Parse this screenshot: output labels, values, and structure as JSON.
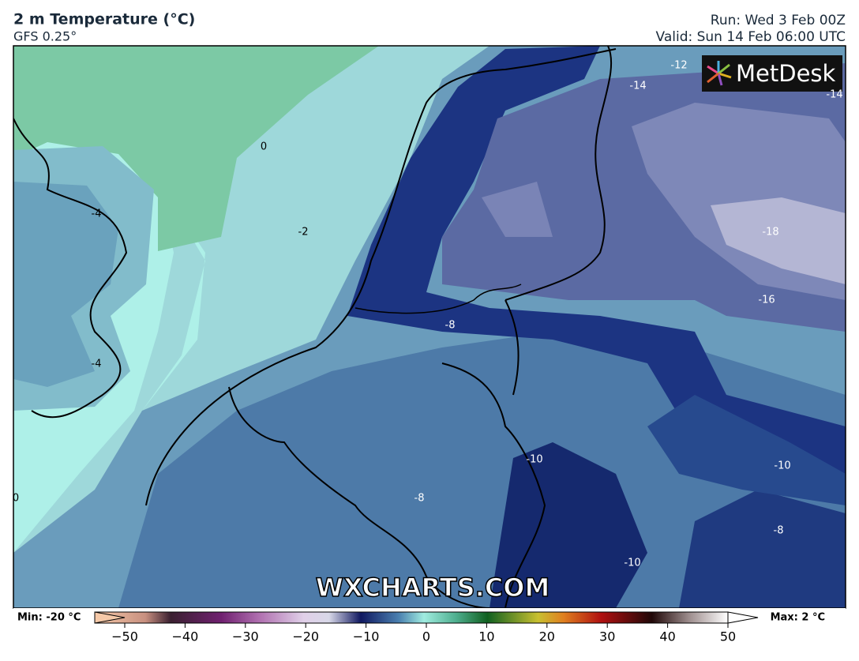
{
  "header": {
    "title": "2 m Temperature (°C)",
    "model": "GFS 0.25°",
    "run": "Run: Wed 3 Feb 00Z",
    "valid": "Valid: Sun 14 Feb 06:00 UTC"
  },
  "logo": "MetDesk",
  "watermark": "WXCHARTS.COM",
  "contour_labels": [
    "-12",
    "-14",
    "-14",
    "0",
    "-4",
    "-2",
    "-18",
    "-16",
    "-8",
    "-4",
    "-10",
    "-10",
    "0",
    "-8",
    "-8",
    "-10"
  ],
  "colorbar": {
    "min_label": "Min: -20 °C",
    "max_label": "Max: 2 °C",
    "ticks": [
      {
        "value": -50,
        "label": "−50"
      },
      {
        "value": -40,
        "label": "−40"
      },
      {
        "value": -30,
        "label": "−30"
      },
      {
        "value": -20,
        "label": "−20"
      },
      {
        "value": -10,
        "label": "−10"
      },
      0,
      10,
      20,
      30,
      40,
      50
    ]
  }
}
